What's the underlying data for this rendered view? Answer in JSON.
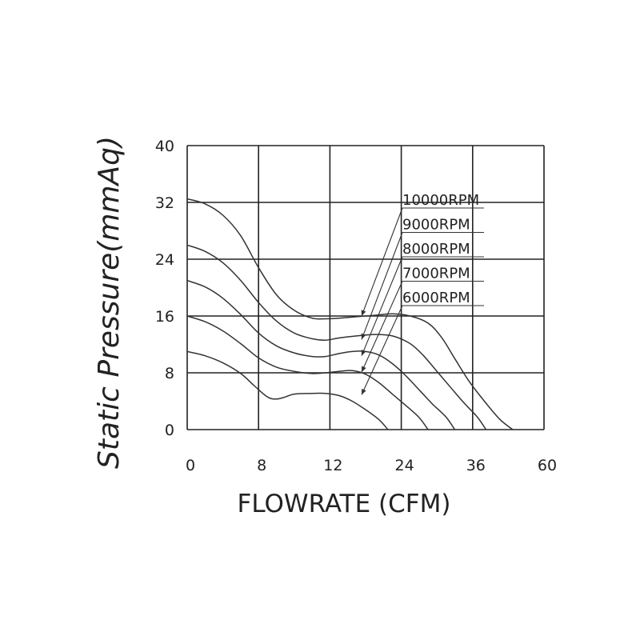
{
  "chart_data": {
    "type": "line",
    "title": "",
    "xlabel": "FLOWRATE (CFM)",
    "ylabel": "Static  Pressure(mmAq)",
    "x_ticks": [
      "0",
      "8",
      "12",
      "24",
      "36",
      "60"
    ],
    "y_ticks": [
      "0",
      "8",
      "16",
      "24",
      "32",
      "40"
    ],
    "grid": true,
    "series": [
      {
        "name": "10000RPM",
        "points": [
          [
            0,
            32.5
          ],
          [
            2,
            31.8
          ],
          [
            4,
            30.2
          ],
          [
            6,
            27.3
          ],
          [
            8,
            22.8
          ],
          [
            10,
            19
          ],
          [
            12,
            16.8
          ],
          [
            14,
            15.7
          ],
          [
            15.5,
            15.6
          ],
          [
            17,
            15.7
          ],
          [
            19,
            15.9
          ],
          [
            21,
            16.1
          ],
          [
            23,
            16.3
          ],
          [
            25,
            16
          ],
          [
            27,
            15
          ],
          [
            28.5,
            13
          ],
          [
            30,
            10
          ],
          [
            31.5,
            7
          ],
          [
            33,
            4.5
          ],
          [
            35,
            1.5
          ],
          [
            36.5,
            0
          ]
        ]
      },
      {
        "name": "9000RPM",
        "points": [
          [
            0,
            26
          ],
          [
            2,
            25.1
          ],
          [
            4,
            23.5
          ],
          [
            6,
            21
          ],
          [
            8,
            17.9
          ],
          [
            10,
            15.3
          ],
          [
            12,
            13.6
          ],
          [
            14,
            12.8
          ],
          [
            15.5,
            12.6
          ],
          [
            17,
            12.9
          ],
          [
            19,
            13.2
          ],
          [
            21,
            13.4
          ],
          [
            23,
            13.2
          ],
          [
            25,
            12.1
          ],
          [
            26.5,
            10.4
          ],
          [
            28,
            8.2
          ],
          [
            29.5,
            6
          ],
          [
            31,
            3.8
          ],
          [
            32.5,
            1.8
          ],
          [
            33.5,
            0
          ]
        ]
      },
      {
        "name": "8000RPM",
        "points": [
          [
            0,
            21
          ],
          [
            2,
            20.1
          ],
          [
            4,
            18.5
          ],
          [
            6,
            16.2
          ],
          [
            8,
            13.6
          ],
          [
            10,
            11.8
          ],
          [
            12,
            10.8
          ],
          [
            14,
            10.3
          ],
          [
            15.5,
            10.3
          ],
          [
            17,
            10.7
          ],
          [
            18.5,
            11
          ],
          [
            20,
            11
          ],
          [
            21.5,
            10.5
          ],
          [
            23,
            9.3
          ],
          [
            24.5,
            7.6
          ],
          [
            26,
            5.6
          ],
          [
            27.5,
            3.6
          ],
          [
            29,
            1.8
          ],
          [
            30,
            0
          ]
        ]
      },
      {
        "name": "7000RPM",
        "points": [
          [
            0,
            16
          ],
          [
            2,
            15.2
          ],
          [
            4,
            13.9
          ],
          [
            6,
            12.1
          ],
          [
            8,
            10.1
          ],
          [
            10,
            8.8
          ],
          [
            12,
            8.2
          ],
          [
            14,
            7.9
          ],
          [
            15.5,
            8
          ],
          [
            17,
            8.2
          ],
          [
            18.5,
            8.3
          ],
          [
            20,
            7.8
          ],
          [
            21.5,
            6.6
          ],
          [
            23,
            5
          ],
          [
            24.5,
            3.4
          ],
          [
            26,
            1.7
          ],
          [
            27,
            0
          ]
        ]
      },
      {
        "name": "6000RPM",
        "points": [
          [
            0,
            11
          ],
          [
            2,
            10.4
          ],
          [
            4,
            9.4
          ],
          [
            6,
            7.9
          ],
          [
            7.5,
            6.2
          ],
          [
            9,
            4.6
          ],
          [
            10,
            4.3
          ],
          [
            11,
            4.6
          ],
          [
            12,
            5
          ],
          [
            14,
            5.1
          ],
          [
            15.5,
            5.1
          ],
          [
            17,
            4.8
          ],
          [
            18.5,
            4
          ],
          [
            20,
            2.8
          ],
          [
            21.5,
            1.4
          ],
          [
            22.5,
            0
          ]
        ]
      }
    ],
    "annotations": [
      {
        "label": "10000RPM",
        "target": [
          20,
          16
        ]
      },
      {
        "label": "9000RPM",
        "target": [
          20,
          12.7
        ]
      },
      {
        "label": "8000RPM",
        "target": [
          20,
          10.4
        ]
      },
      {
        "label": "7000RPM",
        "target": [
          20,
          8.1
        ]
      },
      {
        "label": "6000RPM",
        "target": [
          20,
          4.9
        ]
      }
    ]
  }
}
